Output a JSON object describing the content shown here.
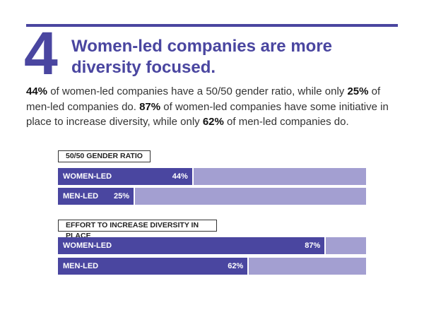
{
  "header": {
    "number": "4",
    "title_line1": "Women-led companies are more",
    "title_line2": "diversity focused."
  },
  "body": {
    "p1": "44%",
    "t1": " of women-led companies have a 50/50 gender ratio, while only ",
    "p2": "25%",
    "t2": " of men-led companies do. ",
    "p3": "87%",
    "t3": " of women-led companies have some initiative in place to increase diversity, while only ",
    "p4": "62%",
    "t4": " of men-led companies do."
  },
  "colors": {
    "primary": "#4a46a0",
    "light": "#a39fd1"
  },
  "chart_data": [
    {
      "type": "bar",
      "orientation": "horizontal",
      "title": "50/50 GENDER RATIO",
      "categories": [
        "WOMEN-LED",
        "MEN-LED"
      ],
      "values": [
        44,
        25
      ],
      "labels": [
        "44%",
        "25%"
      ],
      "xlim": [
        0,
        100
      ]
    },
    {
      "type": "bar",
      "orientation": "horizontal",
      "title": "EFFORT TO INCREASE DIVERSITY IN PLACE",
      "categories": [
        "WOMEN-LED",
        "MEN-LED"
      ],
      "values": [
        87,
        62
      ],
      "labels": [
        "87%",
        "62%"
      ],
      "xlim": [
        0,
        100
      ]
    }
  ]
}
